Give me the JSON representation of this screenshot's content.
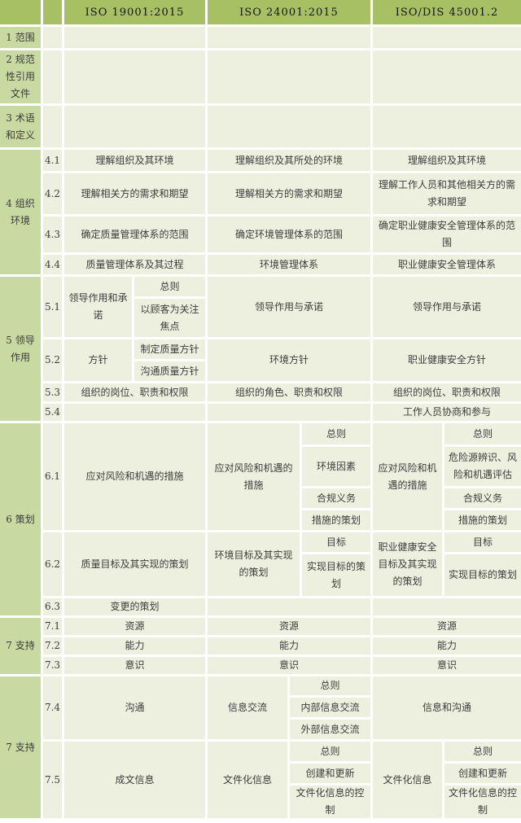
{
  "header": {
    "col_iso9": "ISO 19001:2015",
    "col_iso14": "ISO 24001:2015",
    "col_iso45": "ISO/DIS 45001.2"
  },
  "r1": {
    "label": "1 范围"
  },
  "r2": {
    "label": "2 规范性引用文件"
  },
  "r3": {
    "label": "3 术语和定义"
  },
  "s4": {
    "label": "4 组织环境",
    "r41": {
      "num": "4.1",
      "a": "理解组织及其环境",
      "b": "理解组织及其所处的环境",
      "c": "理解组织及其环境"
    },
    "r42": {
      "num": "4.2",
      "a": "理解相关方的需求和期望",
      "b": "理解相关方的需求和期望",
      "c": "理解工作人员和其他相关方的需求和期望"
    },
    "r43": {
      "num": "4.3",
      "a": "确定质量管理体系的范围",
      "b": "确定环境管理体系的范围",
      "c": "确定职业健康安全管理体系的范围"
    },
    "r44": {
      "num": "4.4",
      "a": "质量管理体系及其过程",
      "b": "环境管理体系",
      "c": "职业健康安全管理体系"
    }
  },
  "s5": {
    "label": "5 领导作用",
    "r51": {
      "num": "5.1",
      "a1": "领导作用和承诺",
      "a2": [
        "总则",
        "以顾客为关注焦点"
      ],
      "b": "领导作用与承诺",
      "c": "领导作用与承诺"
    },
    "r52": {
      "num": "5.2",
      "a1": "方针",
      "a2": [
        "制定质量方针",
        "沟通质量方针"
      ],
      "b": "环境方针",
      "c": "职业健康安全方针"
    },
    "r53": {
      "num": "5.3",
      "a": "组织的岗位、职责和权限",
      "b": "组织的角色、职责和权限",
      "c": "组织的岗位、职责和权限"
    },
    "r54": {
      "num": "5.4",
      "c": "工作人员协商和参与"
    }
  },
  "s6": {
    "label": "6 策划",
    "r61": {
      "num": "6.1",
      "a": "应对风险和机遇的措施",
      "b1": "应对风险和机遇的措施",
      "b2": [
        "总则",
        "环境因素",
        "合规义务",
        "措施的策划"
      ],
      "c1": "应对风险和机遇的措施",
      "c2": [
        "总则",
        "危险源辨识、风险和机遇评估",
        "合规义务",
        "措施的策划"
      ]
    },
    "r62": {
      "num": "6.2",
      "a": "质量目标及其实现的策划",
      "b1": "环境目标及其实现的策划",
      "b2": [
        "目标",
        "实现目标的策划"
      ],
      "c1": "职业健康安全目标及其实现的策划",
      "c2": [
        "目标",
        "实现目标的策划"
      ]
    },
    "r63": {
      "num": "6.3",
      "a": "变更的策划"
    }
  },
  "s7a": {
    "label": "7 支持",
    "r71": {
      "num": "7.1",
      "a": "资源",
      "b": "资源",
      "c": "资源"
    },
    "r72": {
      "num": "7.2",
      "a": "能力",
      "b": "能力",
      "c": "能力"
    },
    "r73": {
      "num": "7.3",
      "a": "意识",
      "b": "意识",
      "c": "意识"
    }
  },
  "s7b": {
    "label": "7 支持",
    "r74": {
      "num": "7.4",
      "a": "沟通",
      "b1": "信息交流",
      "b2": [
        "总则",
        "内部信息交流",
        "外部信息交流"
      ],
      "c": "信息和沟通"
    },
    "r75": {
      "num": "7.5",
      "a": "成文信息",
      "b1": "文件化信息",
      "b2": [
        "总则",
        "创建和更新",
        "文件化信息的控制"
      ],
      "c1": "文件化信息",
      "c2": [
        "总则",
        "创建和更新",
        "文件化信息的控制"
      ]
    }
  },
  "colors": {
    "header_bg": "#a6c063",
    "section_bg": "#c8d9a2",
    "cell_bg": "#eef0df",
    "border": "#ffffff",
    "text": "#3c3c3c"
  }
}
